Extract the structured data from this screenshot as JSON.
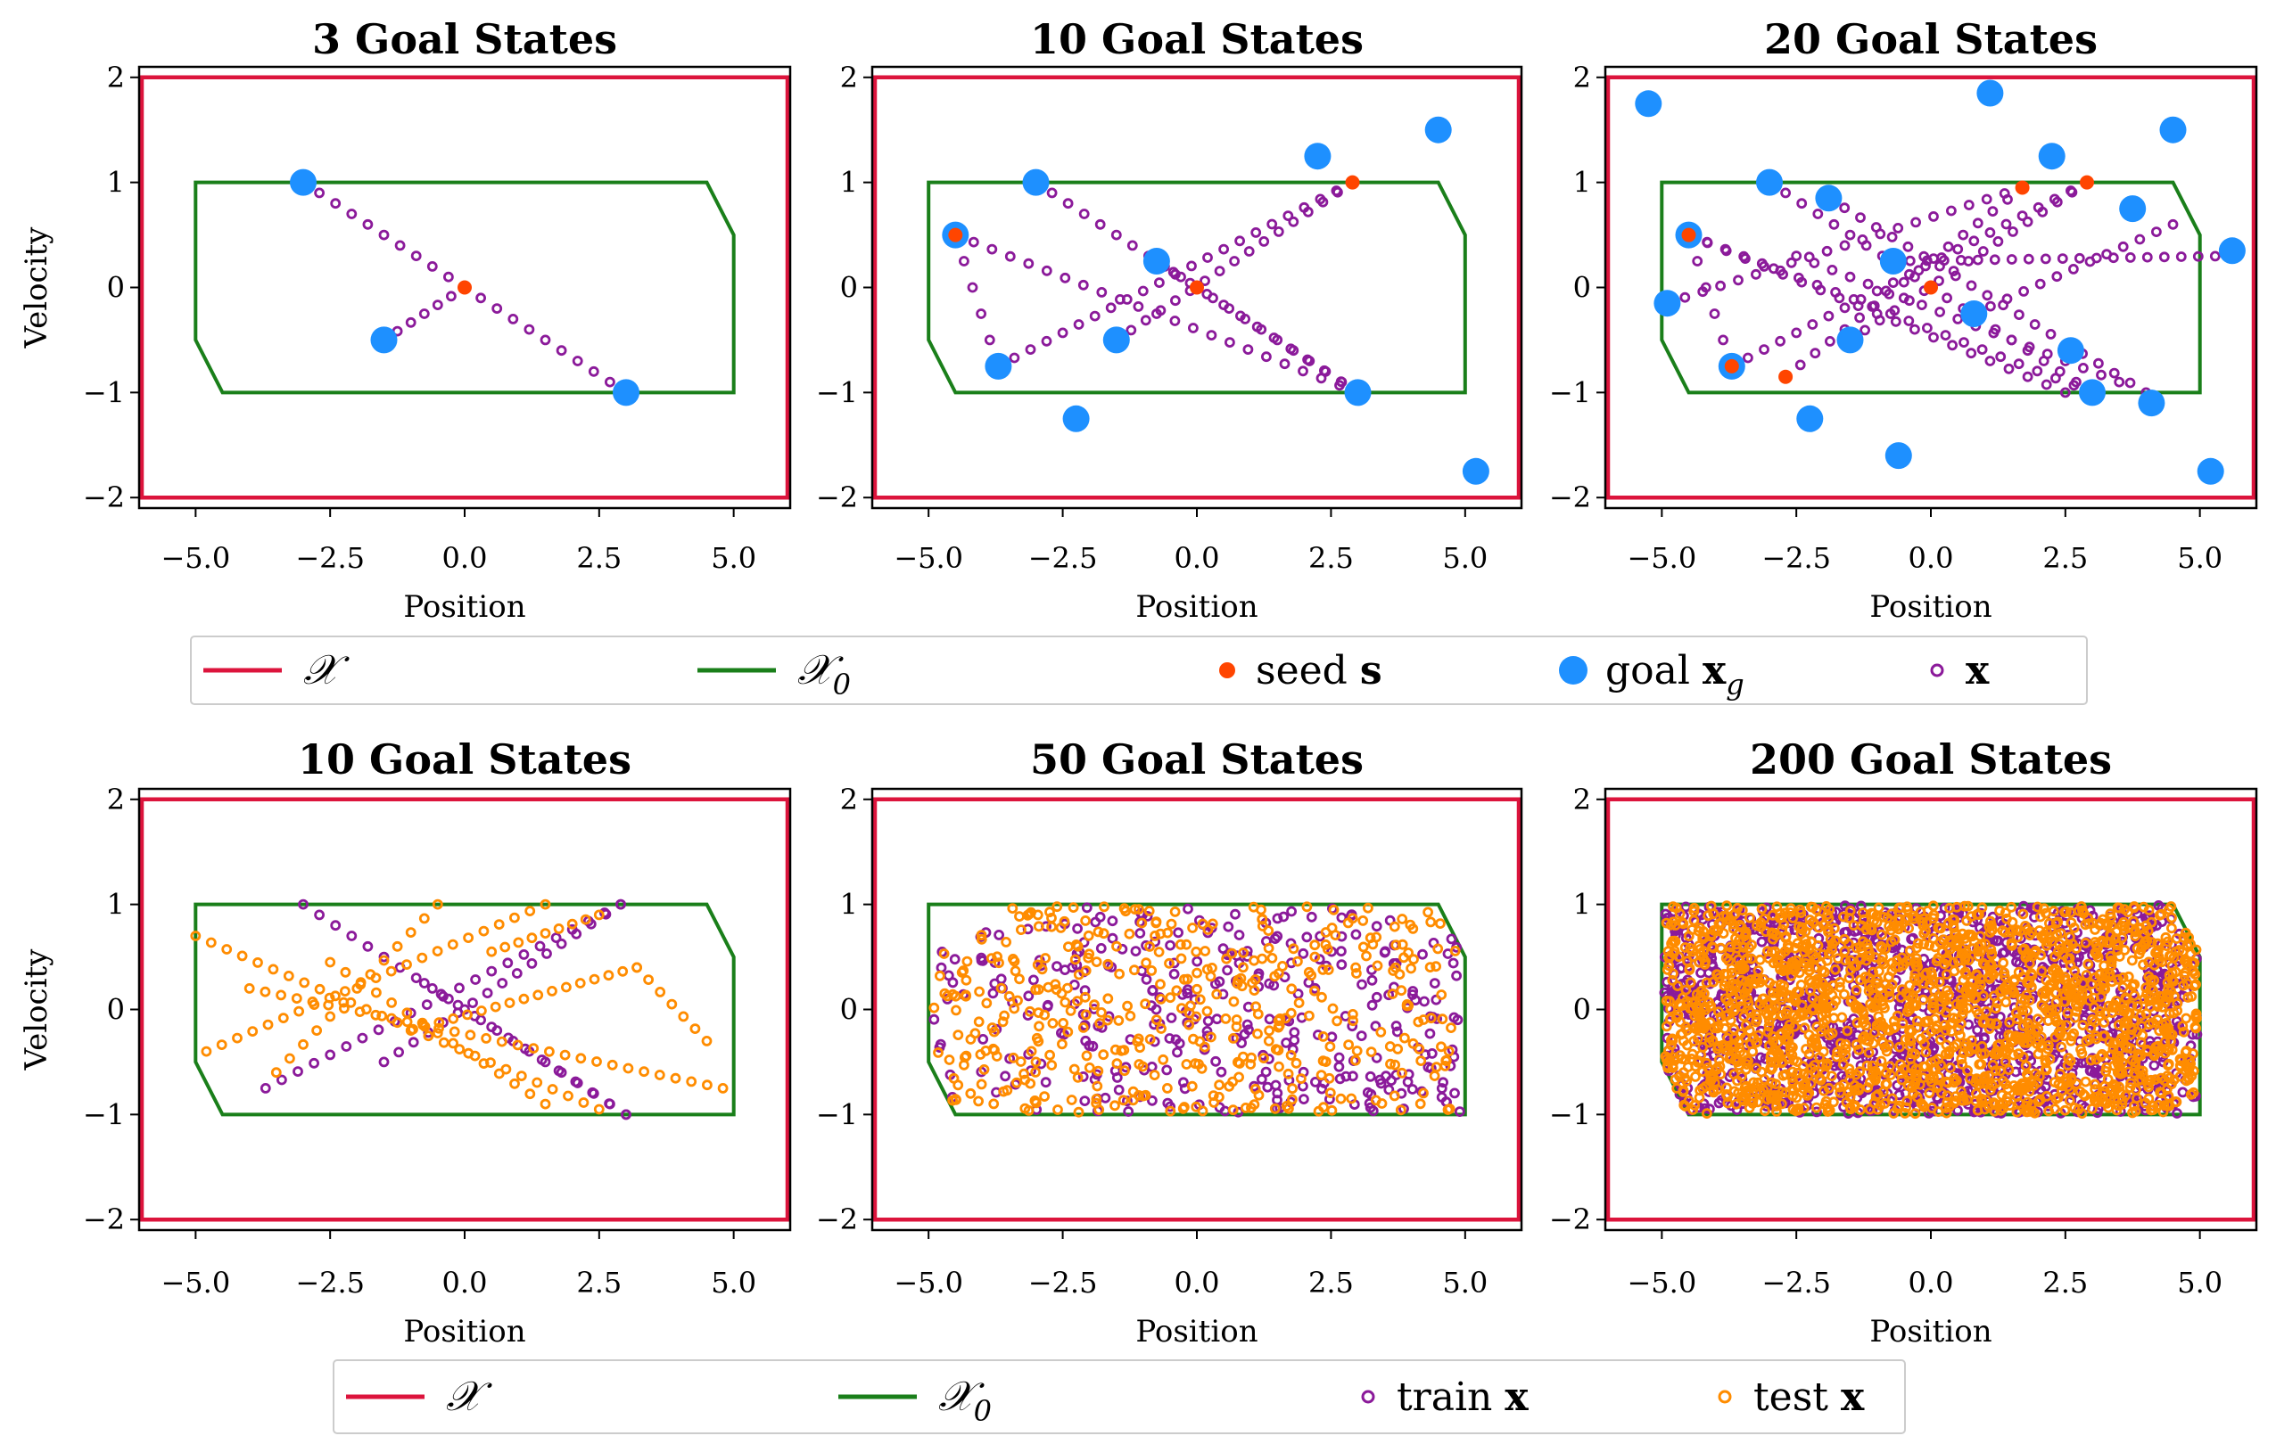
{
  "colors": {
    "domain_X": "#dc143c",
    "domain_X0": "#1a7f1a",
    "seed": "#ff4500",
    "goal": "#1e90ff",
    "x": "#8b1a9a",
    "train_x": "#8b1a9a",
    "test_x": "#ff8c00"
  },
  "legends": [
    {
      "items": [
        {
          "kind": "line",
          "color_key": "domain_X",
          "label": "𝒳"
        },
        {
          "kind": "line",
          "color_key": "domain_X0",
          "label": "𝒳",
          "subscript": "0"
        },
        {
          "kind": "dot",
          "color_key": "seed",
          "label": "seed ",
          "bold_label": "s"
        },
        {
          "kind": "bigdot",
          "color_key": "goal",
          "label": "goal ",
          "bold_label": "x",
          "subscript": "g"
        },
        {
          "kind": "ring",
          "color_key": "x",
          "label": "",
          "bold_label": "x"
        }
      ]
    },
    {
      "items": [
        {
          "kind": "line",
          "color_key": "domain_X",
          "label": "𝒳"
        },
        {
          "kind": "line",
          "color_key": "domain_X0",
          "label": "𝒳",
          "subscript": "0"
        },
        {
          "kind": "ring",
          "color_key": "train_x",
          "label": "train ",
          "bold_label": "x"
        },
        {
          "kind": "ring",
          "color_key": "test_x",
          "label": "test ",
          "bold_label": "x"
        }
      ]
    }
  ],
  "chart_data": [
    {
      "type": "scatter",
      "title": "3 Goal States",
      "xlabel": "Position",
      "ylabel": "Velocity",
      "xlim": [
        -6.05,
        6.05
      ],
      "ylim": [
        -2.1,
        2.1
      ],
      "xticks": [
        "−5.0",
        "−2.5",
        "0.0",
        "2.5",
        "5.0"
      ],
      "yticks": [
        "2",
        "1",
        "0",
        "−1",
        "−2"
      ],
      "xtick_values": [
        -5,
        -2.5,
        0,
        2.5,
        5
      ],
      "ytick_values": [
        2,
        1,
        0,
        -1,
        -2
      ],
      "domain_X": [
        [
          -6,
          -2
        ],
        [
          6,
          -2
        ],
        [
          6,
          2
        ],
        [
          -6,
          2
        ]
      ],
      "domain_X0": [
        [
          -5,
          -0.5
        ],
        [
          -4.5,
          -1
        ],
        [
          5,
          -1
        ],
        [
          5,
          0.5
        ],
        [
          4.5,
          1
        ],
        [
          -5,
          1
        ]
      ],
      "seeds": [
        [
          0,
          0
        ]
      ],
      "goals": [
        [
          -3,
          1
        ],
        [
          -1.5,
          -0.5
        ],
        [
          3,
          -1
        ]
      ],
      "trajectories": [
        {
          "from": [
            -3,
            1
          ],
          "to": [
            3,
            -1
          ],
          "n": 20
        },
        {
          "from": [
            -1.5,
            -0.5
          ],
          "to": [
            0,
            0
          ],
          "n": 6
        }
      ]
    },
    {
      "type": "scatter",
      "title": "10 Goal States",
      "xlabel": "Position",
      "ylabel": "",
      "xlim": [
        -6.05,
        6.05
      ],
      "ylim": [
        -2.1,
        2.1
      ],
      "xticks": [
        "−5.0",
        "−2.5",
        "0.0",
        "2.5",
        "5.0"
      ],
      "yticks": [
        "2",
        "1",
        "0",
        "−1",
        "−2"
      ],
      "xtick_values": [
        -5,
        -2.5,
        0,
        2.5,
        5
      ],
      "ytick_values": [
        2,
        1,
        0,
        -1,
        -2
      ],
      "domain_X": [
        [
          -6,
          -2
        ],
        [
          6,
          -2
        ],
        [
          6,
          2
        ],
        [
          -6,
          2
        ]
      ],
      "domain_X0": [
        [
          -5,
          -0.5
        ],
        [
          -4.5,
          -1
        ],
        [
          5,
          -1
        ],
        [
          5,
          0.5
        ],
        [
          4.5,
          1
        ],
        [
          -5,
          1
        ]
      ],
      "seeds": [
        [
          0,
          0
        ],
        [
          2.9,
          1
        ],
        [
          -4.5,
          0.5
        ]
      ],
      "goals": [
        [
          -3,
          1
        ],
        [
          -4.5,
          0.5
        ],
        [
          -3.7,
          -0.75
        ],
        [
          -1.5,
          -0.5
        ],
        [
          -0.75,
          0.25
        ],
        [
          2.25,
          1.25
        ],
        [
          4.5,
          1.5
        ],
        [
          3,
          -1
        ],
        [
          -2.25,
          -1.25
        ],
        [
          5.2,
          -1.75
        ]
      ],
      "trajectories": [
        {
          "from": [
            -3,
            1
          ],
          "to": [
            3,
            -1
          ],
          "n": 20
        },
        {
          "from": [
            -4.5,
            0.5
          ],
          "to": [
            3,
            -1
          ],
          "n": 22
        },
        {
          "from": [
            -3.7,
            -0.75
          ],
          "to": [
            2.9,
            1
          ],
          "n": 22
        },
        {
          "from": [
            -1.5,
            -0.5
          ],
          "to": [
            2.9,
            1
          ],
          "n": 16
        },
        {
          "from": [
            -3.7,
            -0.75
          ],
          "to": [
            -4.5,
            0.5
          ],
          "n": 5
        },
        {
          "from": [
            -0.75,
            0.25
          ],
          "to": [
            3,
            -1
          ],
          "n": 12
        }
      ]
    },
    {
      "type": "scatter",
      "title": "20 Goal States",
      "xlabel": "Position",
      "ylabel": "",
      "xlim": [
        -6.05,
        6.05
      ],
      "ylim": [
        -2.1,
        2.1
      ],
      "xticks": [
        "−5.0",
        "−2.5",
        "0.0",
        "2.5",
        "5.0"
      ],
      "yticks": [
        "2",
        "1",
        "0",
        "−1",
        "−2"
      ],
      "xtick_values": [
        -5,
        -2.5,
        0,
        2.5,
        5
      ],
      "ytick_values": [
        2,
        1,
        0,
        -1,
        -2
      ],
      "domain_X": [
        [
          -6,
          -2
        ],
        [
          6,
          -2
        ],
        [
          6,
          2
        ],
        [
          -6,
          2
        ]
      ],
      "domain_X0": [
        [
          -5,
          -0.5
        ],
        [
          -4.5,
          -1
        ],
        [
          5,
          -1
        ],
        [
          5,
          0.5
        ],
        [
          4.5,
          1
        ],
        [
          -5,
          1
        ]
      ],
      "seeds": [
        [
          0,
          0
        ],
        [
          1.7,
          0.95
        ],
        [
          2.9,
          1
        ],
        [
          -4.5,
          0.5
        ],
        [
          -3.7,
          -0.75
        ],
        [
          -2.7,
          -0.85
        ]
      ],
      "goals": [
        [
          -5.25,
          1.75
        ],
        [
          1.1,
          1.85
        ],
        [
          4.5,
          1.5
        ],
        [
          2.25,
          1.25
        ],
        [
          -3,
          1
        ],
        [
          -1.9,
          0.85
        ],
        [
          3.75,
          0.75
        ],
        [
          -4.5,
          0.5
        ],
        [
          5.6,
          0.35
        ],
        [
          -0.7,
          0.25
        ],
        [
          -4.9,
          -0.15
        ],
        [
          0.8,
          -0.25
        ],
        [
          -1.5,
          -0.5
        ],
        [
          2.6,
          -0.6
        ],
        [
          -3.7,
          -0.75
        ],
        [
          3,
          -1
        ],
        [
          4.1,
          -1.1
        ],
        [
          -2.25,
          -1.25
        ],
        [
          -0.6,
          -1.6
        ],
        [
          5.2,
          -1.75
        ]
      ],
      "trajectories": [
        {
          "from": [
            -3,
            1
          ],
          "to": [
            3,
            -1
          ],
          "n": 20
        },
        {
          "from": [
            -4.5,
            0.5
          ],
          "to": [
            3,
            -1
          ],
          "n": 22
        },
        {
          "from": [
            -3.7,
            -0.75
          ],
          "to": [
            2.9,
            1
          ],
          "n": 22
        },
        {
          "from": [
            -1.5,
            -0.5
          ],
          "to": [
            2.9,
            1
          ],
          "n": 16
        },
        {
          "from": [
            -2.7,
            -0.85
          ],
          "to": [
            1.7,
            0.95
          ],
          "n": 16
        },
        {
          "from": [
            -4.5,
            0.5
          ],
          "to": [
            2.5,
            -1
          ],
          "n": 20
        },
        {
          "from": [
            -1.9,
            0.85
          ],
          "to": [
            4,
            -1
          ],
          "n": 20
        },
        {
          "from": [
            -0.7,
            0.25
          ],
          "to": [
            5.6,
            0.3
          ],
          "n": 20
        },
        {
          "from": [
            -4.9,
            -0.15
          ],
          "to": [
            1.7,
            0.95
          ],
          "n": 20
        },
        {
          "from": [
            -2.5,
            0.3
          ],
          "to": [
            3.5,
            -0.9
          ],
          "n": 18
        },
        {
          "from": [
            0.8,
            -0.25
          ],
          "to": [
            4.5,
            0.6
          ],
          "n": 12
        },
        {
          "from": [
            -3.7,
            -0.75
          ],
          "to": [
            -4.5,
            0.5
          ],
          "n": 5
        }
      ]
    },
    {
      "type": "scatter",
      "title": "10 Goal States",
      "xlabel": "Position",
      "ylabel": "Velocity",
      "xlim": [
        -6.05,
        6.05
      ],
      "ylim": [
        -2.1,
        2.1
      ],
      "xticks": [
        "−5.0",
        "−2.5",
        "0.0",
        "2.5",
        "5.0"
      ],
      "yticks": [
        "2",
        "1",
        "0",
        "−1",
        "−2"
      ],
      "xtick_values": [
        -5,
        -2.5,
        0,
        2.5,
        5
      ],
      "ytick_values": [
        2,
        1,
        0,
        -1,
        -2
      ],
      "domain_X": [
        [
          -6,
          -2
        ],
        [
          6,
          -2
        ],
        [
          6,
          2
        ],
        [
          -6,
          2
        ]
      ],
      "domain_X0": [
        [
          -5,
          -0.5
        ],
        [
          -4.5,
          -1
        ],
        [
          5,
          -1
        ],
        [
          5,
          0.5
        ],
        [
          4.5,
          1
        ],
        [
          -5,
          1
        ]
      ],
      "train_trajectories": [
        {
          "from": [
            -3,
            1
          ],
          "to": [
            3,
            -1
          ],
          "n": 20
        },
        {
          "from": [
            -3.7,
            -0.75
          ],
          "to": [
            2.9,
            1
          ],
          "n": 22
        },
        {
          "from": [
            -1.5,
            -0.5
          ],
          "to": [
            2.9,
            1
          ],
          "n": 16
        },
        {
          "from": [
            -0.75,
            0.25
          ],
          "to": [
            3,
            -1
          ],
          "n": 12
        }
      ],
      "test_trajectories": [
        {
          "from": [
            -5,
            0.7
          ],
          "to": [
            2.5,
            -0.95
          ],
          "n": 26
        },
        {
          "from": [
            -4.8,
            -0.4
          ],
          "to": [
            1.5,
            1.0
          ],
          "n": 22
        },
        {
          "from": [
            -4,
            0.2
          ],
          "to": [
            4.8,
            -0.75
          ],
          "n": 30
        },
        {
          "from": [
            -3.5,
            -0.6
          ],
          "to": [
            -0.5,
            1.0
          ],
          "n": 12
        },
        {
          "from": [
            -1,
            -0.2
          ],
          "to": [
            3.2,
            0.4
          ],
          "n": 16
        },
        {
          "from": [
            3.2,
            0.4
          ],
          "to": [
            4.5,
            -0.3
          ],
          "n": 6
        },
        {
          "from": [
            -2.5,
            0.45
          ],
          "to": [
            1.5,
            -0.9
          ],
          "n": 14
        },
        {
          "from": [
            0.5,
            0.55
          ],
          "to": [
            2.5,
            0.9
          ],
          "n": 8
        }
      ]
    },
    {
      "type": "scatter",
      "title": "50 Goal States",
      "xlabel": "Position",
      "ylabel": "",
      "xlim": [
        -6.05,
        6.05
      ],
      "ylim": [
        -2.1,
        2.1
      ],
      "xticks": [
        "−5.0",
        "−2.5",
        "0.0",
        "2.5",
        "5.0"
      ],
      "yticks": [
        "2",
        "1",
        "0",
        "−1",
        "−2"
      ],
      "xtick_values": [
        -5,
        -2.5,
        0,
        2.5,
        5
      ],
      "ytick_values": [
        2,
        1,
        0,
        -1,
        -2
      ],
      "domain_X": [
        [
          -6,
          -2
        ],
        [
          6,
          -2
        ],
        [
          6,
          2
        ],
        [
          -6,
          2
        ]
      ],
      "domain_X0": [
        [
          -5,
          -0.5
        ],
        [
          -4.5,
          -1
        ],
        [
          5,
          -1
        ],
        [
          5,
          0.5
        ],
        [
          4.5,
          1
        ],
        [
          -5,
          1
        ]
      ],
      "fill_train_count": 320,
      "fill_test_count": 420,
      "fill_region": {
        "xmin": -4.9,
        "xmax": 4.9,
        "ymin": -0.98,
        "ymax": 0.98
      }
    },
    {
      "type": "scatter",
      "title": "200 Goal States",
      "xlabel": "Position",
      "ylabel": "",
      "xlim": [
        -6.05,
        6.05
      ],
      "ylim": [
        -2.1,
        2.1
      ],
      "xticks": [
        "−5.0",
        "−2.5",
        "0.0",
        "2.5",
        "5.0"
      ],
      "yticks": [
        "2",
        "1",
        "0",
        "−1",
        "−2"
      ],
      "xtick_values": [
        -5,
        -2.5,
        0,
        2.5,
        5
      ],
      "ytick_values": [
        2,
        1,
        0,
        -1,
        -2
      ],
      "domain_X": [
        [
          -6,
          -2
        ],
        [
          6,
          -2
        ],
        [
          6,
          2
        ],
        [
          -6,
          2
        ]
      ],
      "domain_X0": [
        [
          -5,
          -0.5
        ],
        [
          -4.5,
          -1
        ],
        [
          5,
          -1
        ],
        [
          5,
          0.5
        ],
        [
          4.5,
          1
        ],
        [
          -5,
          1
        ]
      ],
      "fill_train_count": 1300,
      "fill_test_count": 1900,
      "fill_region": {
        "xmin": -4.95,
        "xmax": 4.95,
        "ymin": -0.99,
        "ymax": 0.99
      }
    }
  ]
}
